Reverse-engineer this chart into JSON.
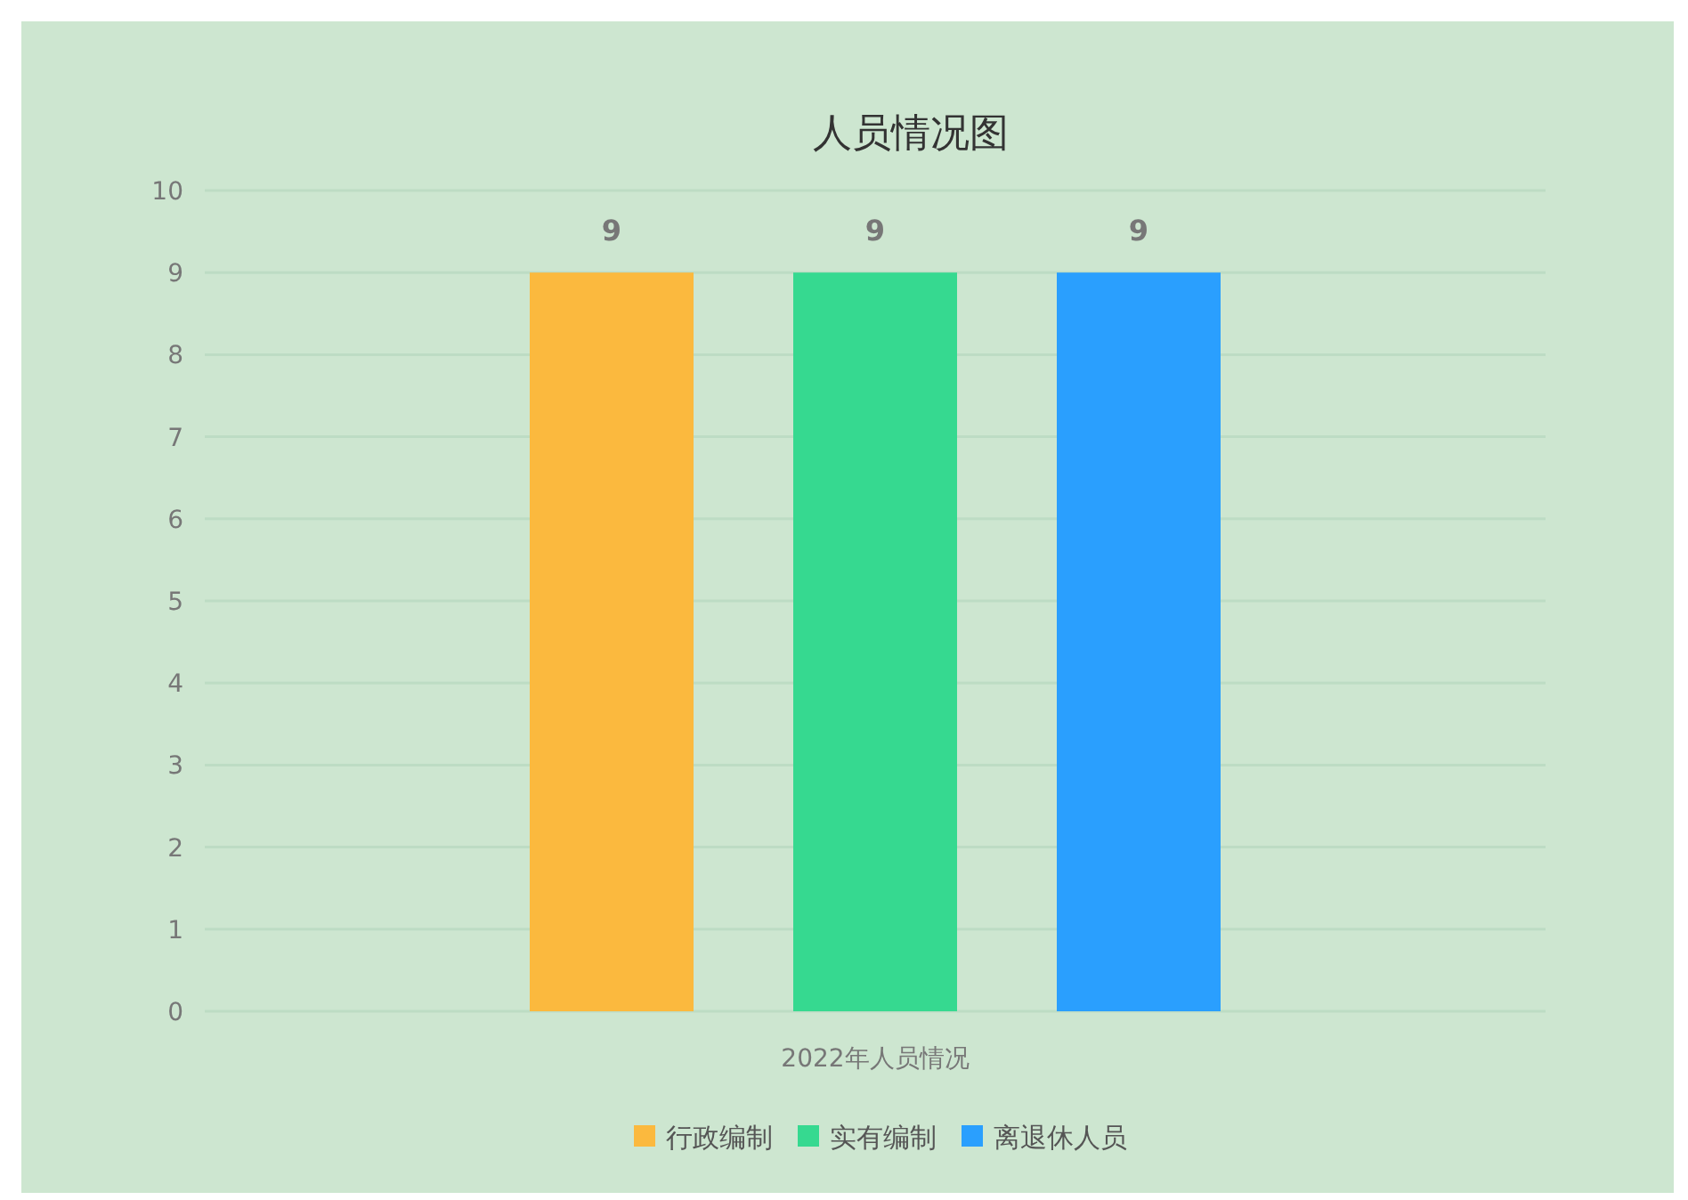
{
  "chart_data": {
    "type": "bar",
    "title": "人员情况图",
    "categories": [
      "2022年人员情况"
    ],
    "series": [
      {
        "name": "行政编制",
        "color": "#fbb93e",
        "values": [
          9
        ]
      },
      {
        "name": "实有编制",
        "color": "#36d990",
        "values": [
          9
        ]
      },
      {
        "name": "离退休人员",
        "color": "#2a9ffe",
        "values": [
          9
        ]
      }
    ],
    "ylim": [
      0,
      10
    ],
    "yticks": [
      0,
      1,
      2,
      3,
      4,
      5,
      6,
      7,
      8,
      9,
      10
    ],
    "grid": "y",
    "data_labels": true,
    "legend": "bottom"
  }
}
